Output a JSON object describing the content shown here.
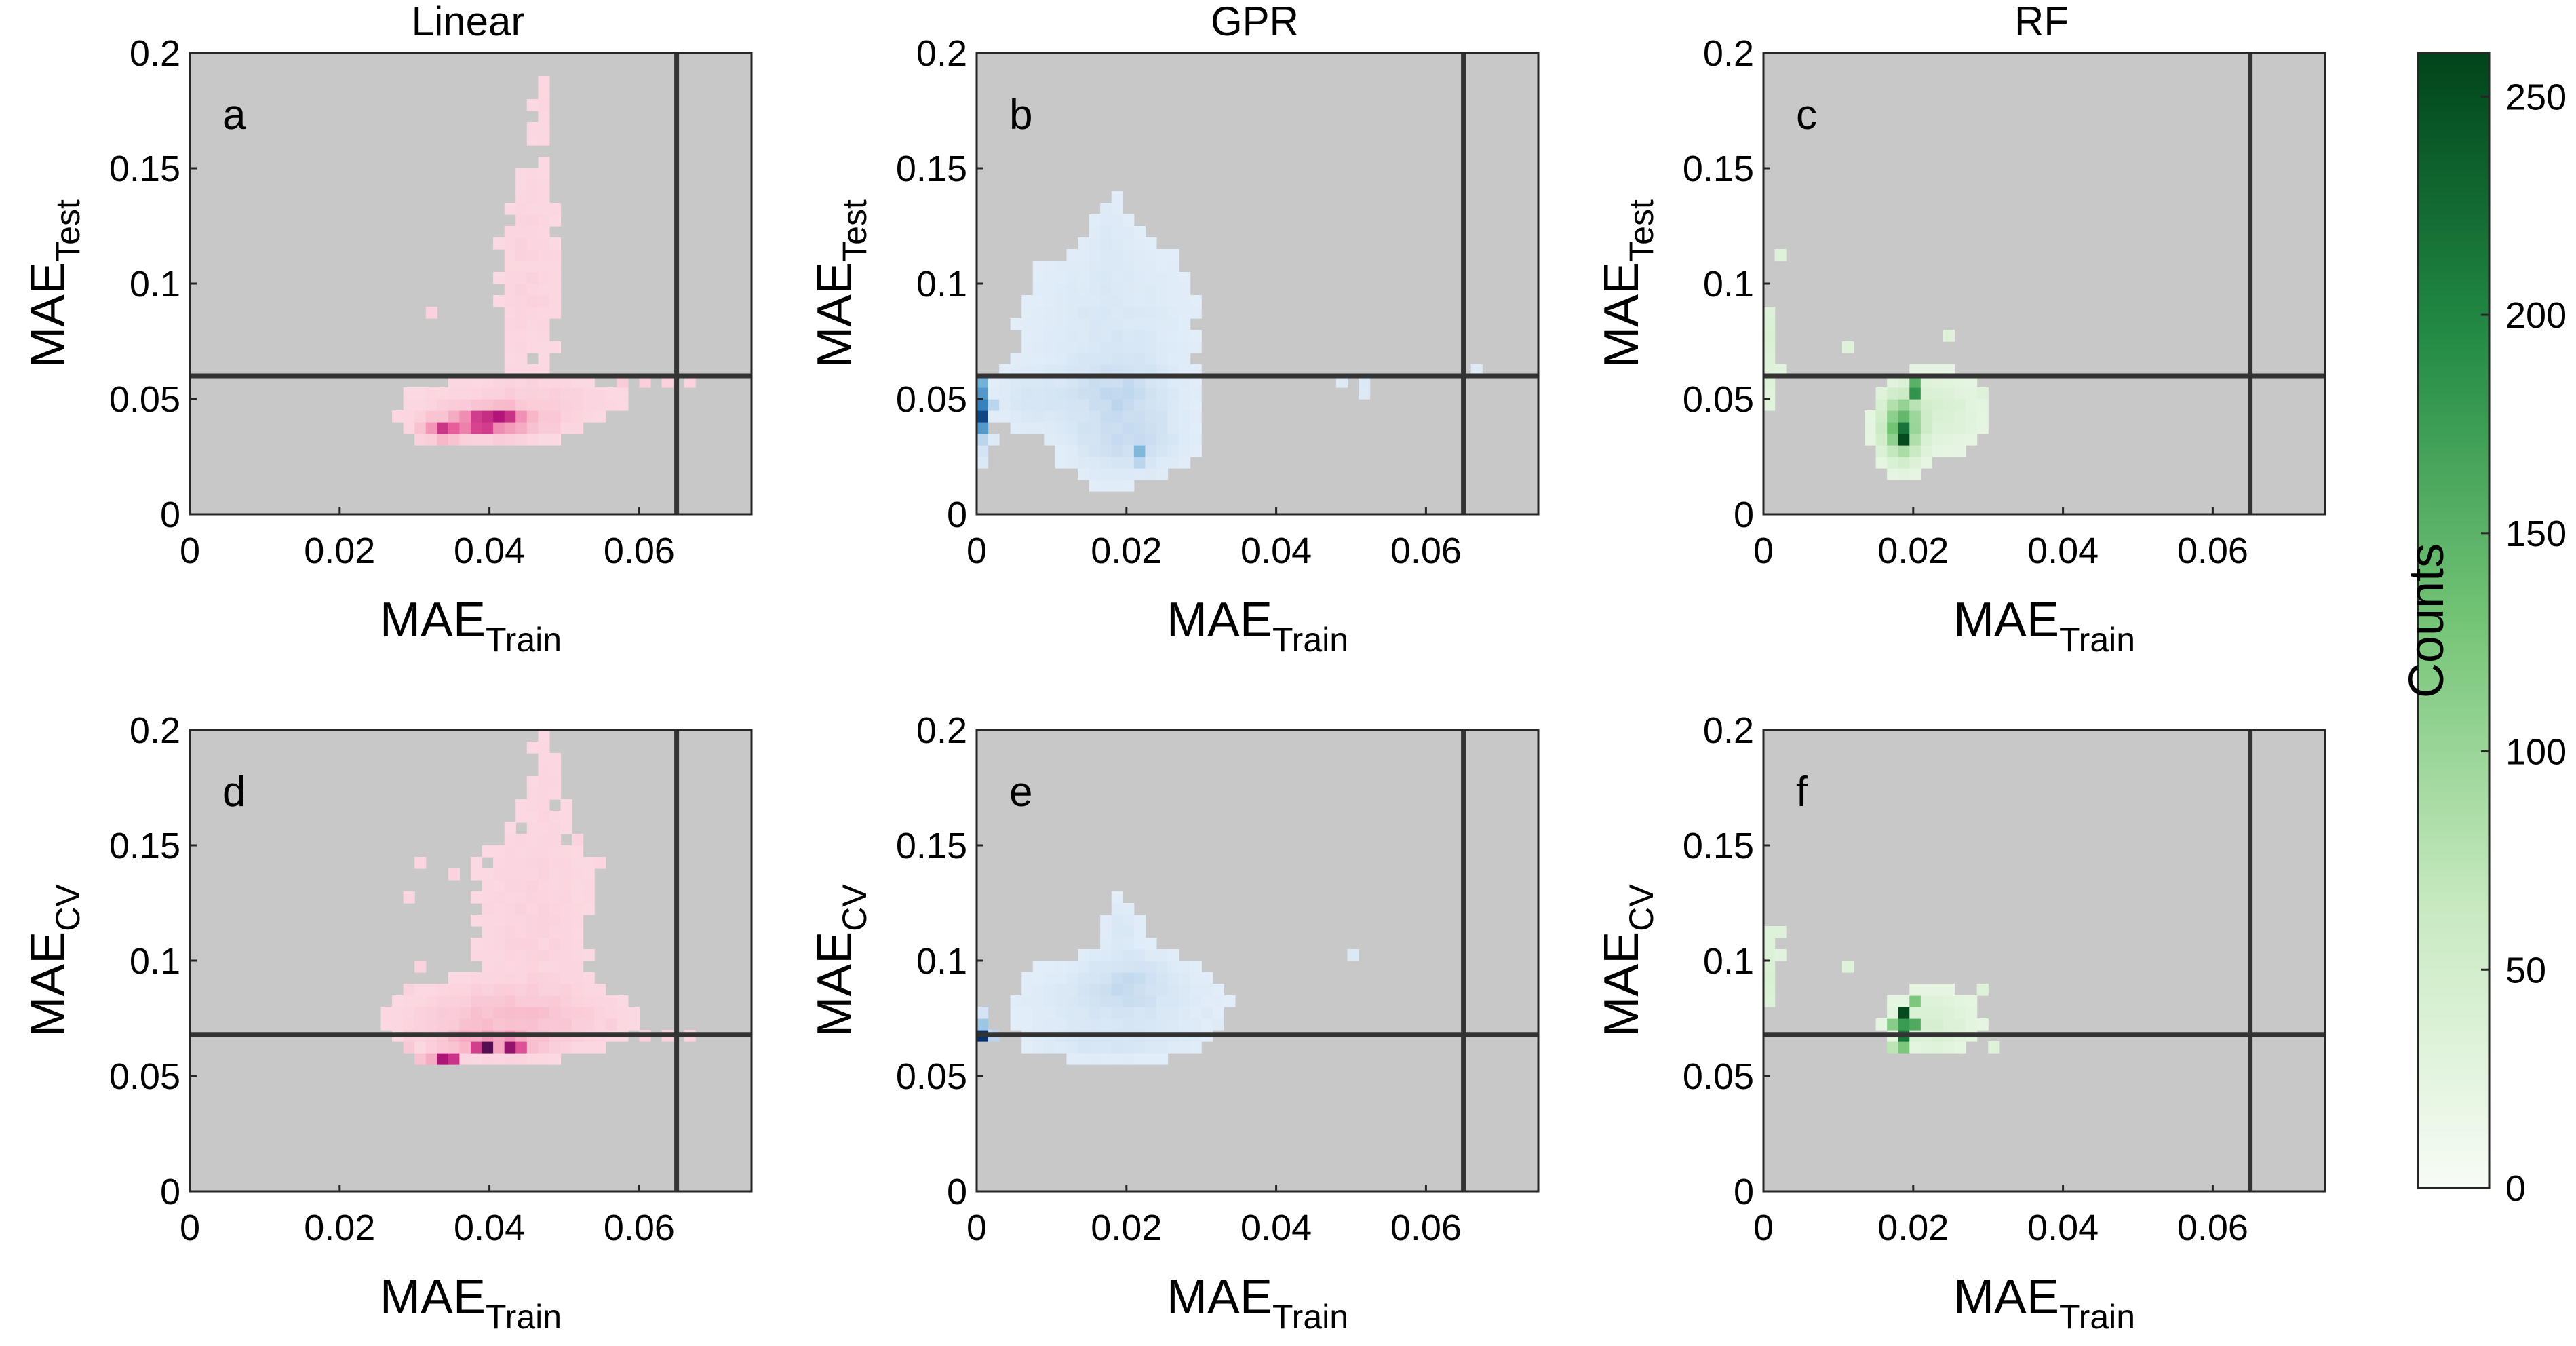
{
  "chart_data": {
    "type": "heatmap",
    "columns": [
      {
        "title": "Linear",
        "colormap": "pink"
      },
      {
        "title": "GPR",
        "colormap": "blue"
      },
      {
        "title": "RF",
        "colormap": "green"
      }
    ],
    "colorbar": {
      "label": "Counts",
      "range": [
        0,
        260
      ],
      "ticks": [
        "0",
        "50",
        "100",
        "150",
        "200",
        "250"
      ],
      "colors": [
        "#f7fcf5",
        "#c7e9c0",
        "#74c476",
        "#238b45",
        "#00441b"
      ]
    },
    "panel_background": "#c8c8c8",
    "colormaps": {
      "pink": [
        "#fde9ee",
        "#f7b6c8",
        "#e9609c",
        "#b5157a",
        "#4a0d4e"
      ],
      "blue": [
        "#eef5fc",
        "#c6dbef",
        "#6baed6",
        "#2171b5",
        "#08306b"
      ],
      "green": [
        "#f4fbf2",
        "#c7e9c0",
        "#74c476",
        "#238b45",
        "#00441b"
      ]
    },
    "xlim": [
      0,
      0.075
    ],
    "ylim": [
      0,
      0.2
    ],
    "x_ticks": [
      "0",
      "0.02",
      "0.04",
      "0.06"
    ],
    "y_ticks": [
      "0",
      "0.05",
      "0.1",
      "0.15",
      "0.2"
    ],
    "xlabel_main": "MAE",
    "xlabel_sub": "Train",
    "panels": [
      {
        "id": "a",
        "letter": "a",
        "row": 0,
        "col": 0,
        "ylabel_main": "MAE",
        "ylabel_sub": "Test",
        "hline": 0.06,
        "vline": 0.065,
        "blobs": [
          {
            "cx": 0.0455,
            "cy": 0.105,
            "sx": 0.003,
            "sy": 0.03,
            "a": 6,
            "r": 0.8
          },
          {
            "cx": 0.047,
            "cy": 0.175,
            "sx": 0.0012,
            "sy": 0.02,
            "a": 3,
            "r": 0.8
          },
          {
            "cx": 0.044,
            "cy": 0.05,
            "sx": 0.009,
            "sy": 0.006,
            "a": 9,
            "r": 0.5
          },
          {
            "cx": 0.04,
            "cy": 0.04,
            "sx": 0.005,
            "sy": 0.004,
            "a": 55,
            "r": 0.6
          },
          {
            "cx": 0.039,
            "cy": 0.04,
            "sx": 0.0012,
            "sy": 0.0018,
            "a": 230,
            "r": 0.0
          },
          {
            "cx": 0.034,
            "cy": 0.036,
            "sx": 0.0012,
            "sy": 0.0018,
            "a": 170,
            "r": 0.0
          },
          {
            "cx": 0.042,
            "cy": 0.043,
            "sx": 0.0013,
            "sy": 0.002,
            "a": 120,
            "r": 0.0
          }
        ],
        "extra_cells": [
          [
            0.031,
            0.035,
            20
          ],
          [
            0.031,
            0.03,
            8
          ],
          [
            0.032,
            0.03,
            10
          ],
          [
            0.032,
            0.085,
            8
          ],
          [
            0.058,
            0.058,
            12
          ],
          [
            0.061,
            0.058,
            10
          ],
          [
            0.063,
            0.057,
            8
          ],
          [
            0.066,
            0.058,
            6
          ]
        ]
      },
      {
        "id": "b",
        "letter": "b",
        "row": 0,
        "col": 1,
        "ylabel_main": "MAE",
        "ylabel_sub": "Test",
        "hline": 0.06,
        "vline": 0.065,
        "blobs": [
          {
            "cx": 0.018,
            "cy": 0.075,
            "sx": 0.007,
            "sy": 0.028,
            "a": 10,
            "r": 0.5
          },
          {
            "cx": 0.018,
            "cy": 0.12,
            "sx": 0.0015,
            "sy": 0.012,
            "a": 5,
            "r": 0.6
          },
          {
            "cx": 0.02,
            "cy": 0.035,
            "sx": 0.004,
            "sy": 0.01,
            "a": 28,
            "r": 0.5
          },
          {
            "cx": 0.019,
            "cy": 0.055,
            "sx": 0.0035,
            "sy": 0.008,
            "a": 22,
            "r": 0.5
          },
          {
            "cx": 0.008,
            "cy": 0.05,
            "sx": 0.004,
            "sy": 0.008,
            "a": 10,
            "r": 0.4
          }
        ],
        "extra_cells": [
          [
            0.0005,
            0.058,
            90
          ],
          [
            0.0005,
            0.053,
            120
          ],
          [
            0.0005,
            0.048,
            150
          ],
          [
            0.0005,
            0.043,
            230
          ],
          [
            0.0005,
            0.038,
            120
          ],
          [
            0.0005,
            0.033,
            40
          ],
          [
            0.0015,
            0.048,
            40
          ],
          [
            0.0005,
            0.028,
            15
          ],
          [
            0.0005,
            0.023,
            8
          ],
          [
            0.021,
            0.025,
            80
          ],
          [
            0.021,
            0.023,
            40
          ],
          [
            0.048,
            0.058,
            6
          ],
          [
            0.051,
            0.055,
            8
          ],
          [
            0.052,
            0.053,
            6
          ],
          [
            0.067,
            0.06,
            5
          ],
          [
            0.0025,
            0.032,
            6
          ]
        ]
      },
      {
        "id": "c",
        "letter": "c",
        "row": 0,
        "col": 2,
        "ylabel_main": "MAE",
        "ylabel_sub": "Test",
        "hline": 0.06,
        "vline": 0.065,
        "blobs": [
          {
            "cx": 0.0225,
            "cy": 0.045,
            "sx": 0.004,
            "sy": 0.01,
            "a": 15,
            "r": 0.4
          },
          {
            "cx": 0.0185,
            "cy": 0.038,
            "sx": 0.0015,
            "sy": 0.008,
            "a": 120,
            "r": 0.2
          }
        ],
        "extra_cells": [
          [
            0.0185,
            0.03,
            250
          ],
          [
            0.0185,
            0.035,
            200
          ],
          [
            0.0195,
            0.05,
            160
          ],
          [
            0.0195,
            0.055,
            120
          ],
          [
            0.0185,
            0.043,
            110
          ],
          [
            0.0005,
            0.085,
            10
          ],
          [
            0.0005,
            0.08,
            12
          ],
          [
            0.0005,
            0.075,
            14
          ],
          [
            0.0005,
            0.07,
            12
          ],
          [
            0.0005,
            0.065,
            10
          ],
          [
            0.0005,
            0.06,
            8
          ],
          [
            0.0005,
            0.055,
            8
          ],
          [
            0.0005,
            0.05,
            6
          ],
          [
            0.0005,
            0.045,
            6
          ],
          [
            0.0015,
            0.06,
            6
          ],
          [
            0.0025,
            0.11,
            8
          ],
          [
            0.0105,
            0.07,
            8
          ],
          [
            0.0285,
            0.05,
            8
          ],
          [
            0.0245,
            0.075,
            8
          ]
        ]
      },
      {
        "id": "d",
        "letter": "d",
        "row": 1,
        "col": 0,
        "ylabel_main": "MAE",
        "ylabel_sub": "CV",
        "hline": 0.068,
        "vline": 0.065,
        "blobs": [
          {
            "cx": 0.046,
            "cy": 0.115,
            "sx": 0.006,
            "sy": 0.035,
            "a": 6,
            "r": 0.7
          },
          {
            "cx": 0.0475,
            "cy": 0.18,
            "sx": 0.0015,
            "sy": 0.018,
            "a": 3,
            "r": 0.9
          },
          {
            "cx": 0.042,
            "cy": 0.075,
            "sx": 0.008,
            "sy": 0.008,
            "a": 20,
            "r": 0.5
          },
          {
            "cx": 0.04,
            "cy": 0.065,
            "sx": 0.004,
            "sy": 0.003,
            "a": 55,
            "r": 0.5
          }
        ],
        "extra_cells": [
          [
            0.04,
            0.064,
            250
          ],
          [
            0.042,
            0.064,
            200
          ],
          [
            0.038,
            0.064,
            130
          ],
          [
            0.034,
            0.058,
            180
          ],
          [
            0.035,
            0.058,
            140
          ],
          [
            0.032,
            0.058,
            40
          ],
          [
            0.03,
            0.058,
            20
          ],
          [
            0.044,
            0.064,
            110
          ],
          [
            0.0285,
            0.062,
            15
          ],
          [
            0.029,
            0.068,
            10
          ],
          [
            0.0285,
            0.085,
            6
          ],
          [
            0.03,
            0.095,
            6
          ],
          [
            0.0295,
            0.125,
            5
          ],
          [
            0.031,
            0.14,
            5
          ],
          [
            0.035,
            0.135,
            6
          ],
          [
            0.06,
            0.065,
            10
          ],
          [
            0.063,
            0.065,
            8
          ],
          [
            0.066,
            0.065,
            6
          ],
          [
            0.056,
            0.07,
            10
          ],
          [
            0.052,
            0.15,
            6
          ],
          [
            0.054,
            0.145,
            5
          ]
        ]
      },
      {
        "id": "e",
        "letter": "e",
        "row": 1,
        "col": 1,
        "ylabel_main": "MAE",
        "ylabel_sub": "CV",
        "hline": 0.068,
        "vline": 0.065,
        "blobs": [
          {
            "cx": 0.019,
            "cy": 0.082,
            "sx": 0.008,
            "sy": 0.012,
            "a": 12,
            "r": 0.5
          },
          {
            "cx": 0.02,
            "cy": 0.09,
            "sx": 0.003,
            "sy": 0.008,
            "a": 22,
            "r": 0.5
          },
          {
            "cx": 0.0195,
            "cy": 0.115,
            "sx": 0.0015,
            "sy": 0.008,
            "a": 8,
            "r": 0.5
          },
          {
            "cx": 0.018,
            "cy": 0.065,
            "sx": 0.006,
            "sy": 0.004,
            "a": 12,
            "r": 0.5
          }
        ],
        "extra_cells": [
          [
            0.0005,
            0.068,
            260
          ],
          [
            0.0005,
            0.073,
            60
          ],
          [
            0.0005,
            0.078,
            15
          ],
          [
            0.0015,
            0.068,
            40
          ],
          [
            0.0505,
            0.1,
            8
          ],
          [
            0.0305,
            0.075,
            6
          ],
          [
            0.0325,
            0.072,
            5
          ]
        ]
      },
      {
        "id": "f",
        "letter": "f",
        "row": 1,
        "col": 2,
        "ylabel_main": "MAE",
        "ylabel_sub": "CV",
        "hline": 0.068,
        "vline": 0.065,
        "blobs": [
          {
            "cx": 0.0225,
            "cy": 0.073,
            "sx": 0.0035,
            "sy": 0.008,
            "a": 15,
            "r": 0.4
          }
        ],
        "extra_cells": [
          [
            0.0185,
            0.078,
            250
          ],
          [
            0.0185,
            0.068,
            200
          ],
          [
            0.0185,
            0.073,
            150
          ],
          [
            0.0195,
            0.073,
            130
          ],
          [
            0.0195,
            0.083,
            90
          ],
          [
            0.0175,
            0.073,
            80
          ],
          [
            0.0185,
            0.063,
            90
          ],
          [
            0.0165,
            0.063,
            40
          ],
          [
            0.0005,
            0.083,
            10
          ],
          [
            0.0005,
            0.088,
            12
          ],
          [
            0.0005,
            0.093,
            14
          ],
          [
            0.0005,
            0.098,
            12
          ],
          [
            0.0005,
            0.103,
            10
          ],
          [
            0.0005,
            0.108,
            8
          ],
          [
            0.0005,
            0.113,
            8
          ],
          [
            0.0015,
            0.1,
            6
          ],
          [
            0.0025,
            0.11,
            8
          ],
          [
            0.0105,
            0.098,
            8
          ],
          [
            0.0285,
            0.088,
            8
          ],
          [
            0.0305,
            0.063,
            8
          ]
        ]
      }
    ]
  }
}
